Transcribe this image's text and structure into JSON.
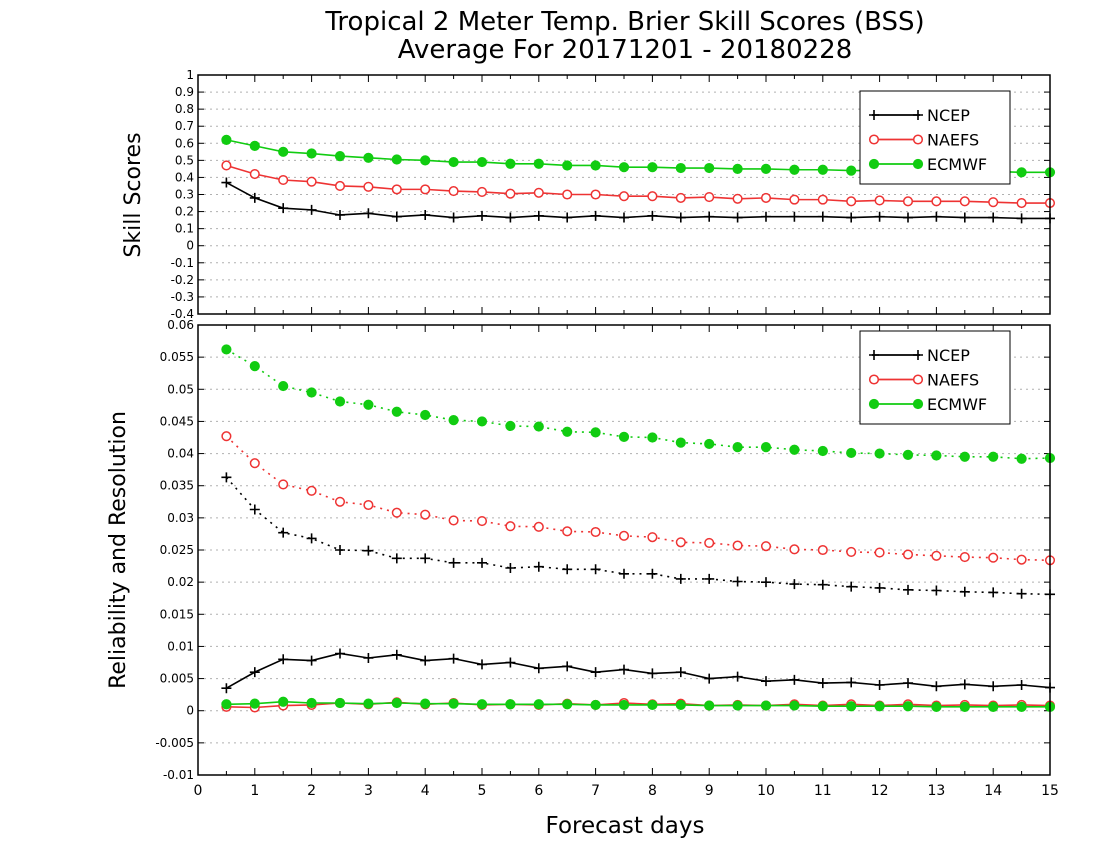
{
  "header": {
    "title_line1": "Tropical 2 Meter Temp. Brier Skill Scores (BSS)",
    "title_line2": "Average For 20171201 - 20180228"
  },
  "x_axis": {
    "label": "Forecast days",
    "range": [
      0,
      15
    ],
    "tick_labels": [
      "0",
      "1",
      "2",
      "3",
      "4",
      "5",
      "6",
      "7",
      "8",
      "9",
      "10",
      "11",
      "12",
      "13",
      "14",
      "15"
    ]
  },
  "colors": {
    "NCEP": "#000000",
    "NAEFS": "#ee3333",
    "ECMWF": "#11cc11",
    "grid": "#b0b0b0"
  },
  "chart_data": [
    {
      "type": "line",
      "ylabel": "Skill Scores",
      "ylim": [
        -0.4,
        1
      ],
      "grid": "horizontal dotted",
      "legend_position": "top-right",
      "y_tick_labels": [
        "1",
        "0.9",
        "0.8",
        "0.7",
        "0.6",
        "0.5",
        "0.4",
        "0.3",
        "0.2",
        "0.1",
        "0",
        "-0.1",
        "-0.2",
        "-0.3",
        "-0.4"
      ],
      "y_tick_values": [
        1,
        0.9,
        0.8,
        0.7,
        0.6,
        0.5,
        0.4,
        0.3,
        0.2,
        0.1,
        0,
        -0.1,
        -0.2,
        -0.3,
        -0.4
      ],
      "x": [
        0.5,
        1,
        1.5,
        2,
        2.5,
        3,
        3.5,
        4,
        4.5,
        5,
        5.5,
        6,
        6.5,
        7,
        7.5,
        8,
        8.5,
        9,
        9.5,
        10,
        10.5,
        11,
        11.5,
        12,
        12.5,
        13,
        13.5,
        14,
        14.5,
        15
      ],
      "series": [
        {
          "name": "NCEP",
          "marker": "plus",
          "style": "solid",
          "values": [
            0.37,
            0.28,
            0.22,
            0.21,
            0.18,
            0.19,
            0.17,
            0.18,
            0.165,
            0.175,
            0.165,
            0.175,
            0.165,
            0.175,
            0.165,
            0.175,
            0.165,
            0.17,
            0.165,
            0.17,
            0.17,
            0.17,
            0.165,
            0.17,
            0.165,
            0.17,
            0.165,
            0.165,
            0.16,
            0.16
          ]
        },
        {
          "name": "NAEFS",
          "marker": "open-circle",
          "style": "solid",
          "values": [
            0.47,
            0.42,
            0.385,
            0.375,
            0.35,
            0.345,
            0.33,
            0.33,
            0.32,
            0.315,
            0.305,
            0.31,
            0.3,
            0.3,
            0.29,
            0.29,
            0.28,
            0.285,
            0.275,
            0.28,
            0.27,
            0.27,
            0.26,
            0.265,
            0.26,
            0.26,
            0.26,
            0.255,
            0.25,
            0.25
          ]
        },
        {
          "name": "ECMWF",
          "marker": "filled-circle",
          "style": "solid",
          "values": [
            0.62,
            0.585,
            0.55,
            0.54,
            0.525,
            0.515,
            0.505,
            0.5,
            0.49,
            0.49,
            0.48,
            0.48,
            0.47,
            0.47,
            0.46,
            0.46,
            0.455,
            0.455,
            0.45,
            0.45,
            0.445,
            0.445,
            0.44,
            0.44,
            0.44,
            0.435,
            0.435,
            0.435,
            0.43,
            0.43
          ]
        }
      ]
    },
    {
      "type": "line",
      "ylabel": "Reliability and Resolution",
      "ylim": [
        -0.01,
        0.06
      ],
      "grid": "horizontal dotted",
      "legend_position": "top-right",
      "y_tick_labels": [
        "0.06",
        "0.055",
        "0.05",
        "0.045",
        "0.04",
        "0.035",
        "0.03",
        "0.025",
        "0.02",
        "0.015",
        "0.01",
        "0.005",
        "0",
        "-0.005",
        "-0.01"
      ],
      "y_tick_values": [
        0.06,
        0.055,
        0.05,
        0.045,
        0.04,
        0.035,
        0.03,
        0.025,
        0.02,
        0.015,
        0.01,
        0.005,
        0,
        -0.005,
        -0.01
      ],
      "x": [
        0.5,
        1,
        1.5,
        2,
        2.5,
        3,
        3.5,
        4,
        4.5,
        5,
        5.5,
        6,
        6.5,
        7,
        7.5,
        8,
        8.5,
        9,
        9.5,
        10,
        10.5,
        11,
        11.5,
        12,
        12.5,
        13,
        13.5,
        14,
        14.5,
        15
      ],
      "series": [
        {
          "name": "NCEP",
          "metric": "resolution",
          "marker": "plus",
          "style": "dotted",
          "values": [
            0.0363,
            0.0313,
            0.0277,
            0.0268,
            0.025,
            0.0249,
            0.0237,
            0.0237,
            0.023,
            0.023,
            0.0222,
            0.0224,
            0.022,
            0.022,
            0.0213,
            0.0213,
            0.0205,
            0.0205,
            0.0201,
            0.02,
            0.0197,
            0.0196,
            0.0193,
            0.0191,
            0.0188,
            0.0187,
            0.0185,
            0.0184,
            0.0182,
            0.0181
          ]
        },
        {
          "name": "NAEFS",
          "metric": "resolution",
          "marker": "open-circle",
          "style": "dotted",
          "values": [
            0.0427,
            0.0385,
            0.0352,
            0.0342,
            0.0325,
            0.032,
            0.0308,
            0.0305,
            0.0296,
            0.0295,
            0.0287,
            0.0286,
            0.0279,
            0.0278,
            0.0272,
            0.027,
            0.0262,
            0.0261,
            0.0257,
            0.0256,
            0.0251,
            0.025,
            0.0247,
            0.0246,
            0.0243,
            0.0241,
            0.0239,
            0.0238,
            0.0235,
            0.0234
          ]
        },
        {
          "name": "ECMWF",
          "metric": "resolution",
          "marker": "filled-circle",
          "style": "dotted",
          "values": [
            0.0562,
            0.0536,
            0.0505,
            0.0495,
            0.0481,
            0.0476,
            0.0465,
            0.046,
            0.0452,
            0.045,
            0.0443,
            0.0442,
            0.0434,
            0.0433,
            0.0426,
            0.0425,
            0.0417,
            0.0415,
            0.041,
            0.041,
            0.0406,
            0.0404,
            0.0401,
            0.04,
            0.0398,
            0.0397,
            0.0395,
            0.0395,
            0.0392,
            0.0393
          ]
        },
        {
          "name": "NCEP",
          "metric": "reliability",
          "marker": "plus",
          "style": "solid",
          "values": [
            0.0035,
            0.006,
            0.008,
            0.0078,
            0.0089,
            0.0082,
            0.0087,
            0.0078,
            0.0081,
            0.0072,
            0.0075,
            0.0066,
            0.0069,
            0.006,
            0.0064,
            0.0058,
            0.006,
            0.005,
            0.0053,
            0.0046,
            0.0048,
            0.0043,
            0.0044,
            0.004,
            0.0043,
            0.0038,
            0.0041,
            0.0038,
            0.004,
            0.0036
          ]
        },
        {
          "name": "NAEFS",
          "metric": "reliability",
          "marker": "open-circle",
          "style": "solid",
          "values": [
            0.0006,
            0.0005,
            0.0008,
            0.0009,
            0.0012,
            0.001,
            0.0013,
            0.001,
            0.0012,
            0.0009,
            0.001,
            0.0009,
            0.0011,
            0.0009,
            0.0012,
            0.001,
            0.0011,
            0.0008,
            0.0009,
            0.0008,
            0.001,
            0.0008,
            0.001,
            0.0008,
            0.001,
            0.0008,
            0.0009,
            0.0008,
            0.0009,
            0.0008
          ]
        },
        {
          "name": "ECMWF",
          "metric": "reliability",
          "marker": "filled-circle",
          "style": "solid",
          "values": [
            0.001,
            0.0011,
            0.0014,
            0.0012,
            0.0012,
            0.0011,
            0.0012,
            0.0011,
            0.0011,
            0.001,
            0.001,
            0.001,
            0.001,
            0.0009,
            0.0009,
            0.0009,
            0.0009,
            0.0008,
            0.0008,
            0.0008,
            0.0008,
            0.0007,
            0.0007,
            0.0007,
            0.0007,
            0.0006,
            0.0006,
            0.0006,
            0.0006,
            0.0006
          ]
        }
      ]
    }
  ]
}
